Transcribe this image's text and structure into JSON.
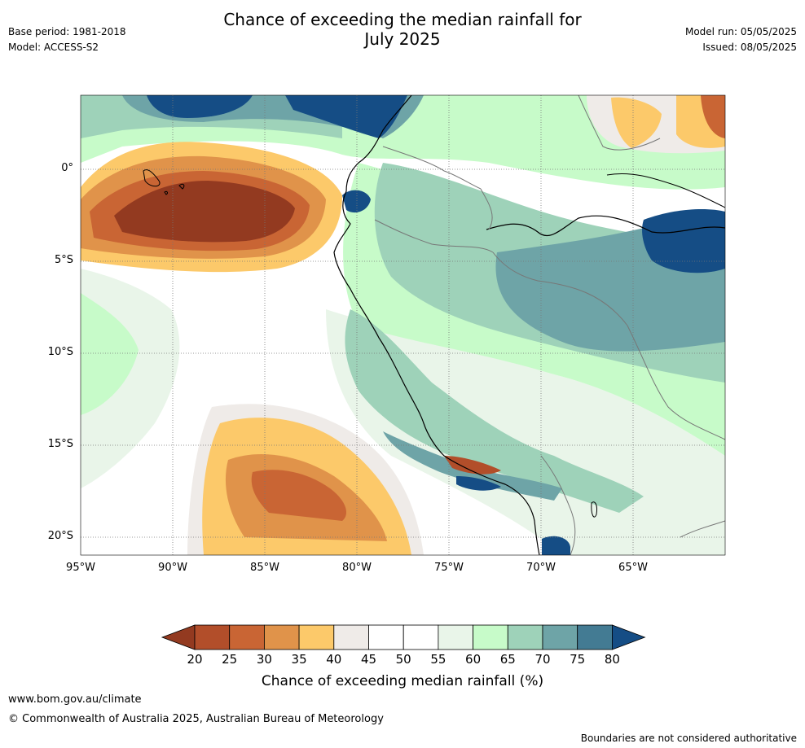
{
  "header": {
    "title_line1": "Chance of exceeding the median rainfall for",
    "title_line2": "July 2025",
    "base_period": "Base period: 1981-2018",
    "model": "Model: ACCESS-S2",
    "model_run": "Model run: 05/05/2025",
    "issued": "Issued: 08/05/2025"
  },
  "map": {
    "lat_labels": [
      "0°",
      "5°S",
      "10°S",
      "15°S",
      "20°S"
    ],
    "lon_labels": [
      "95°W",
      "90°W",
      "85°W",
      "80°W",
      "75°W",
      "70°W",
      "65°W"
    ]
  },
  "colorbar": {
    "ticks": [
      "20",
      "25",
      "30",
      "35",
      "40",
      "45",
      "50",
      "55",
      "60",
      "65",
      "70",
      "75",
      "80"
    ],
    "colors": [
      "#933a20",
      "#b24e2a",
      "#c96534",
      "#e0934a",
      "#fcc96a",
      "#efebe8",
      "#ffffff",
      "#ffffff",
      "#e9f5e9",
      "#c7fbc9",
      "#9ed2b9",
      "#6ea4a7",
      "#437b93",
      "#154d85"
    ],
    "label": "Chance of exceeding median rainfall (%)"
  },
  "footer": {
    "website": "www.bom.gov.au/climate",
    "copyright": "© Commonwealth of Australia 2025, Australian Bureau of Meteorology",
    "disclaimer": "Boundaries are not considered authoritative"
  }
}
